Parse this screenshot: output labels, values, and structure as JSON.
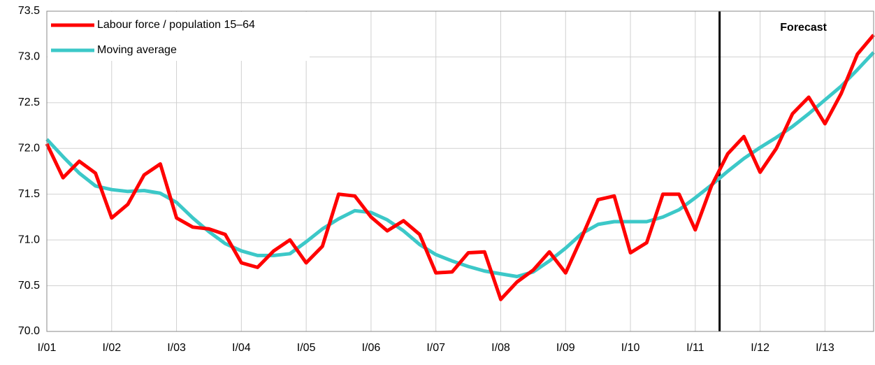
{
  "chart_data": {
    "type": "line",
    "categories": [
      "I/01",
      null,
      null,
      null,
      "I/02",
      null,
      null,
      null,
      "I/03",
      null,
      null,
      null,
      "I/04",
      null,
      null,
      null,
      "I/05",
      null,
      null,
      null,
      "I/06",
      null,
      null,
      null,
      "I/07",
      null,
      null,
      null,
      "I/08",
      null,
      null,
      null,
      "I/09",
      null,
      null,
      null,
      "I/10",
      null,
      null,
      null,
      "I/11",
      null,
      null,
      null,
      "I/12",
      null,
      null,
      null,
      "I/13",
      null,
      null,
      null
    ],
    "series": [
      {
        "name": "Labour force / population 15–64",
        "color": "#ff0000",
        "values": [
          72.05,
          71.68,
          71.86,
          71.73,
          71.24,
          71.39,
          71.71,
          71.83,
          71.24,
          71.14,
          71.12,
          71.06,
          70.75,
          70.7,
          70.88,
          71.0,
          70.75,
          70.93,
          71.5,
          71.48,
          71.25,
          71.1,
          71.21,
          71.06,
          70.64,
          70.65,
          70.86,
          70.87,
          70.35,
          70.54,
          70.67,
          70.87,
          70.64,
          71.03,
          71.44,
          71.48,
          70.86,
          70.97,
          71.5,
          71.5,
          71.11,
          71.59,
          71.94,
          72.13,
          71.74,
          72.0,
          72.38,
          72.56,
          72.27,
          72.6,
          73.03,
          73.24
        ]
      },
      {
        "name": "Moving average",
        "color": "#3cc8c8",
        "values": [
          72.1,
          71.91,
          71.73,
          71.59,
          71.55,
          71.53,
          71.54,
          71.51,
          71.41,
          71.24,
          71.09,
          70.96,
          70.88,
          70.83,
          70.83,
          70.85,
          70.98,
          71.12,
          71.23,
          71.32,
          71.3,
          71.22,
          71.1,
          70.95,
          70.84,
          70.77,
          70.71,
          70.66,
          70.63,
          70.6,
          70.65,
          70.77,
          70.91,
          71.07,
          71.17,
          71.2,
          71.2,
          71.2,
          71.25,
          71.33,
          71.46,
          71.6,
          71.75,
          71.89,
          72.01,
          72.12,
          72.24,
          72.38,
          72.53,
          72.68,
          72.86,
          73.05
        ]
      }
    ],
    "ylim": [
      70,
      73.5
    ],
    "yticks": [
      {
        "value": 70,
        "label": "70.0"
      },
      70.5,
      {
        "value": 71,
        "label": "71.0"
      },
      71.5,
      {
        "value": 72,
        "label": "72.0"
      },
      72.5,
      {
        "value": 73,
        "label": "73.0"
      },
      73.5
    ],
    "grid": true,
    "legend": "upper left",
    "annotations": [
      {
        "text": "Forecast",
        "x": 41.5
      }
    ]
  }
}
